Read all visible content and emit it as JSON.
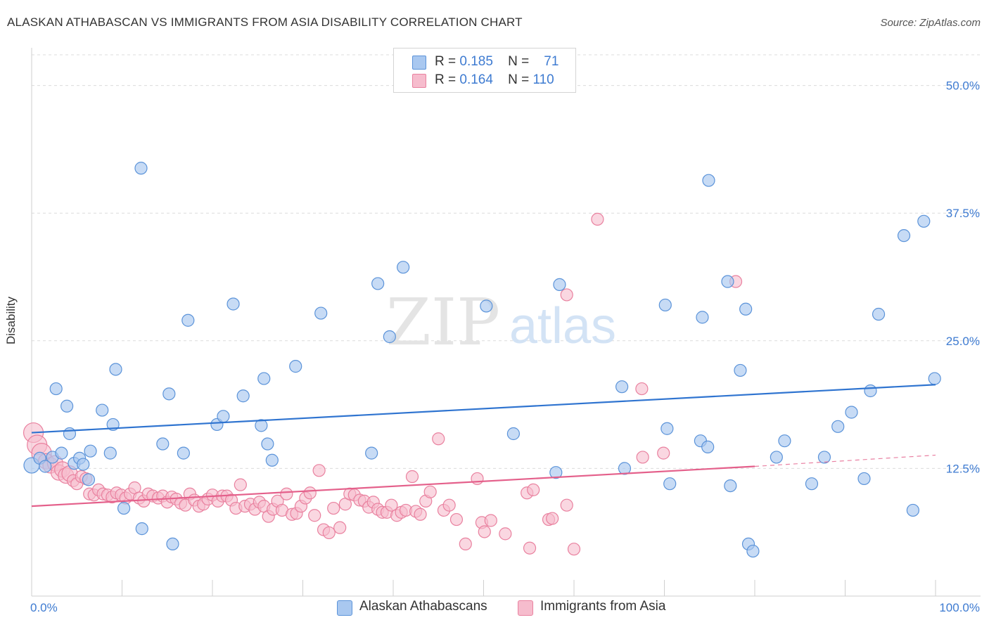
{
  "header": {
    "title": "ALASKAN ATHABASCAN VS IMMIGRANTS FROM ASIA DISABILITY CORRELATION CHART",
    "source": "Source: ZipAtlas.com"
  },
  "legend": {
    "rows": [
      {
        "r_label": "R =",
        "r_value": "0.185",
        "n_label": "N =",
        "n_value": "71"
      },
      {
        "r_label": "R =",
        "r_value": "0.164",
        "n_label": "N =",
        "n_value": "110"
      }
    ]
  },
  "watermark": {
    "zip": "ZIP",
    "atlas": "atlas"
  },
  "colors": {
    "blue_fill": "#a9c8f0",
    "blue_stroke": "#5b93d9",
    "blue_line": "#2f74d0",
    "pink_fill": "#f6bccd",
    "pink_stroke": "#e9819f",
    "pink_line": "#e4608b",
    "tick_label": "#3e7bd1",
    "grid": "#dcdcdc"
  },
  "chart_data": {
    "type": "scatter",
    "title": "ALASKAN ATHABASCAN VS IMMIGRANTS FROM ASIA DISABILITY CORRELATION CHART",
    "xlabel": "",
    "ylabel": "Disability",
    "xlim": [
      0,
      100
    ],
    "ylim": [
      0,
      53
    ],
    "x_tick_labels": [
      "0.0%",
      "100.0%"
    ],
    "y_ticks": [
      12.5,
      25.0,
      37.5,
      50.0
    ],
    "y_tick_labels": [
      "12.5%",
      "25.0%",
      "37.5%",
      "50.0%"
    ],
    "grid": "horizontal dashed",
    "legend_placement": "bottom",
    "series": [
      {
        "name": "Alaskan Athabascans",
        "color": "#a9c8f0",
        "trend": {
          "x": [
            0,
            100
          ],
          "y": [
            16.0,
            20.7
          ]
        },
        "points": [
          [
            0.0,
            12.8
          ],
          [
            0.9,
            13.5
          ],
          [
            1.5,
            12.7
          ],
          [
            2.3,
            13.6
          ],
          [
            2.7,
            20.3
          ],
          [
            3.3,
            14.0
          ],
          [
            3.9,
            18.6
          ],
          [
            4.2,
            15.9
          ],
          [
            4.7,
            13.0
          ],
          [
            5.3,
            13.5
          ],
          [
            5.7,
            12.9
          ],
          [
            6.3,
            11.4
          ],
          [
            6.5,
            14.2
          ],
          [
            7.8,
            18.2
          ],
          [
            8.7,
            14.0
          ],
          [
            9.0,
            16.8
          ],
          [
            9.3,
            22.2
          ],
          [
            10.2,
            8.6
          ],
          [
            12.1,
            41.9
          ],
          [
            12.2,
            6.6
          ],
          [
            14.5,
            14.9
          ],
          [
            15.2,
            19.8
          ],
          [
            15.6,
            5.1
          ],
          [
            16.8,
            14.0
          ],
          [
            17.3,
            27.0
          ],
          [
            20.5,
            16.8
          ],
          [
            21.2,
            17.6
          ],
          [
            22.3,
            28.6
          ],
          [
            23.4,
            19.6
          ],
          [
            25.4,
            16.7
          ],
          [
            25.7,
            21.3
          ],
          [
            26.1,
            14.9
          ],
          [
            26.6,
            13.3
          ],
          [
            29.2,
            22.5
          ],
          [
            32.0,
            27.7
          ],
          [
            38.3,
            30.6
          ],
          [
            39.6,
            25.4
          ],
          [
            41.1,
            32.2
          ],
          [
            37.6,
            14.0
          ],
          [
            50.3,
            28.4
          ],
          [
            53.3,
            15.9
          ],
          [
            58.0,
            12.1
          ],
          [
            58.4,
            30.5
          ],
          [
            65.3,
            20.5
          ],
          [
            65.6,
            12.5
          ],
          [
            70.1,
            28.5
          ],
          [
            70.3,
            16.4
          ],
          [
            70.6,
            11.0
          ],
          [
            74.0,
            15.2
          ],
          [
            74.8,
            14.6
          ],
          [
            74.2,
            27.3
          ],
          [
            74.9,
            40.7
          ],
          [
            77.0,
            30.8
          ],
          [
            77.3,
            10.8
          ],
          [
            78.4,
            22.1
          ],
          [
            79.0,
            28.1
          ],
          [
            79.3,
            5.1
          ],
          [
            79.8,
            4.4
          ],
          [
            82.4,
            13.6
          ],
          [
            83.3,
            15.2
          ],
          [
            86.3,
            11.0
          ],
          [
            87.7,
            13.6
          ],
          [
            89.2,
            16.6
          ],
          [
            90.7,
            18.0
          ],
          [
            92.1,
            11.5
          ],
          [
            92.8,
            20.1
          ],
          [
            93.7,
            27.6
          ],
          [
            96.5,
            35.3
          ],
          [
            97.5,
            8.4
          ],
          [
            98.7,
            36.7
          ],
          [
            99.9,
            21.3
          ]
        ]
      },
      {
        "name": "Immigrants from Asia",
        "color": "#f6bccd",
        "trend": {
          "x": [
            0,
            80
          ],
          "y": [
            8.8,
            12.7
          ]
        },
        "trend_dashed": {
          "x": [
            80,
            100
          ],
          "y": [
            12.7,
            13.8
          ]
        },
        "points": [
          [
            0.2,
            16.0
          ],
          [
            0.6,
            14.8
          ],
          [
            1.1,
            14.0
          ],
          [
            1.6,
            13.2
          ],
          [
            2.1,
            12.8
          ],
          [
            2.6,
            13.0
          ],
          [
            3.0,
            12.1
          ],
          [
            3.4,
            12.4
          ],
          [
            3.8,
            11.8
          ],
          [
            4.2,
            12.0
          ],
          [
            4.6,
            11.3
          ],
          [
            5.0,
            11.0
          ],
          [
            5.5,
            11.7
          ],
          [
            6.0,
            11.5
          ],
          [
            6.4,
            10.0
          ],
          [
            6.9,
            9.9
          ],
          [
            7.4,
            10.4
          ],
          [
            7.9,
            10.0
          ],
          [
            8.4,
            9.9
          ],
          [
            8.9,
            9.7
          ],
          [
            9.4,
            10.1
          ],
          [
            9.9,
            9.9
          ],
          [
            10.4,
            9.6
          ],
          [
            10.9,
            10.0
          ],
          [
            11.4,
            10.6
          ],
          [
            11.9,
            9.6
          ],
          [
            12.4,
            9.3
          ],
          [
            12.9,
            10.0
          ],
          [
            13.4,
            9.8
          ],
          [
            14.0,
            9.6
          ],
          [
            14.5,
            9.8
          ],
          [
            15.0,
            9.2
          ],
          [
            15.5,
            9.7
          ],
          [
            16.0,
            9.5
          ],
          [
            16.5,
            9.1
          ],
          [
            17.0,
            8.9
          ],
          [
            17.5,
            10.0
          ],
          [
            18.0,
            9.4
          ],
          [
            18.5,
            8.8
          ],
          [
            19.0,
            9.0
          ],
          [
            19.5,
            9.5
          ],
          [
            20.0,
            9.9
          ],
          [
            20.6,
            9.3
          ],
          [
            21.1,
            9.8
          ],
          [
            21.6,
            9.8
          ],
          [
            22.1,
            9.4
          ],
          [
            22.6,
            8.6
          ],
          [
            23.1,
            10.9
          ],
          [
            23.6,
            8.8
          ],
          [
            24.2,
            9.0
          ],
          [
            24.7,
            8.5
          ],
          [
            25.2,
            9.2
          ],
          [
            25.7,
            8.8
          ],
          [
            26.2,
            7.8
          ],
          [
            26.7,
            8.5
          ],
          [
            27.2,
            9.3
          ],
          [
            27.7,
            8.4
          ],
          [
            28.2,
            10.0
          ],
          [
            28.8,
            8.0
          ],
          [
            29.3,
            8.1
          ],
          [
            29.8,
            8.8
          ],
          [
            30.3,
            9.6
          ],
          [
            30.8,
            10.1
          ],
          [
            31.3,
            7.9
          ],
          [
            31.8,
            12.3
          ],
          [
            32.3,
            6.5
          ],
          [
            32.9,
            6.2
          ],
          [
            33.4,
            8.6
          ],
          [
            34.1,
            6.7
          ],
          [
            34.7,
            9.0
          ],
          [
            35.2,
            10.0
          ],
          [
            35.7,
            9.9
          ],
          [
            36.3,
            9.4
          ],
          [
            36.8,
            9.3
          ],
          [
            37.3,
            8.7
          ],
          [
            37.8,
            9.2
          ],
          [
            38.3,
            8.5
          ],
          [
            38.8,
            8.2
          ],
          [
            39.3,
            8.2
          ],
          [
            39.8,
            8.9
          ],
          [
            40.4,
            7.9
          ],
          [
            40.9,
            8.2
          ],
          [
            41.4,
            8.4
          ],
          [
            42.1,
            11.7
          ],
          [
            42.5,
            8.3
          ],
          [
            43.0,
            8.0
          ],
          [
            43.6,
            9.3
          ],
          [
            44.1,
            10.2
          ],
          [
            45.0,
            15.4
          ],
          [
            45.6,
            8.4
          ],
          [
            46.2,
            8.9
          ],
          [
            47.0,
            7.5
          ],
          [
            48.0,
            5.1
          ],
          [
            49.3,
            11.5
          ],
          [
            49.8,
            7.2
          ],
          [
            50.1,
            6.3
          ],
          [
            50.8,
            7.4
          ],
          [
            52.4,
            6.1
          ],
          [
            54.8,
            10.1
          ],
          [
            55.1,
            4.7
          ],
          [
            55.5,
            10.4
          ],
          [
            57.2,
            7.5
          ],
          [
            57.6,
            7.6
          ],
          [
            59.2,
            8.9
          ],
          [
            60.0,
            4.6
          ],
          [
            59.2,
            29.5
          ],
          [
            62.6,
            36.9
          ],
          [
            67.5,
            20.3
          ],
          [
            67.6,
            13.6
          ],
          [
            69.9,
            14.0
          ],
          [
            77.9,
            30.8
          ]
        ]
      }
    ]
  }
}
